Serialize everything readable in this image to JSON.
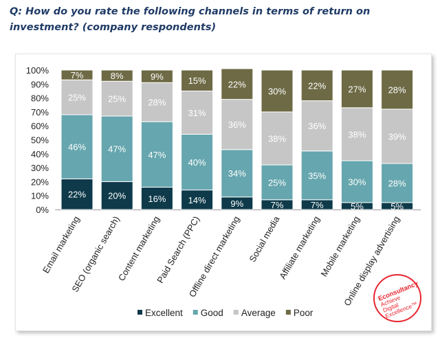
{
  "title": "Q: How do you rate the following channels in terms of return on investment? (company respondents)",
  "logo": {
    "text": [
      "Econsultancy",
      "Achieve",
      "Digital",
      "Excellence™"
    ],
    "color": "#e8242f"
  },
  "chart_data": {
    "type": "bar",
    "stacked": true,
    "title": "Q: How do you rate the following channels in terms of return on investment? (company respondents)",
    "xlabel": "",
    "ylabel": "",
    "ylim": [
      0,
      100
    ],
    "yticks": [
      "0%",
      "10%",
      "20%",
      "30%",
      "40%",
      "50%",
      "60%",
      "70%",
      "80%",
      "90%",
      "100%"
    ],
    "categories": [
      "Email marketing",
      "SEO (organic search)",
      "Content marketing",
      "Paid Search (PPC)",
      "Offline direct marketing",
      "Social media",
      "Affiliate marketing",
      "Mobile marketing",
      "Online display advertising"
    ],
    "series": [
      {
        "name": "Excellent",
        "color": "#0e3a4a",
        "label_color": "#ffffff",
        "values": [
          22,
          20,
          16,
          14,
          9,
          7,
          7,
          5,
          5
        ]
      },
      {
        "name": "Good",
        "color": "#66a6ae",
        "label_color": "#ffffff",
        "values": [
          46,
          47,
          47,
          40,
          34,
          25,
          35,
          30,
          28
        ]
      },
      {
        "name": "Average",
        "color": "#c6c6c6",
        "label_color": "#ffffff",
        "values": [
          25,
          25,
          28,
          31,
          36,
          38,
          36,
          38,
          39
        ]
      },
      {
        "name": "Poor",
        "color": "#6d6a45",
        "label_color": "#ffffff",
        "values": [
          7,
          8,
          9,
          15,
          22,
          30,
          22,
          27,
          28
        ]
      }
    ],
    "legend": "bottom",
    "grid": false
  }
}
